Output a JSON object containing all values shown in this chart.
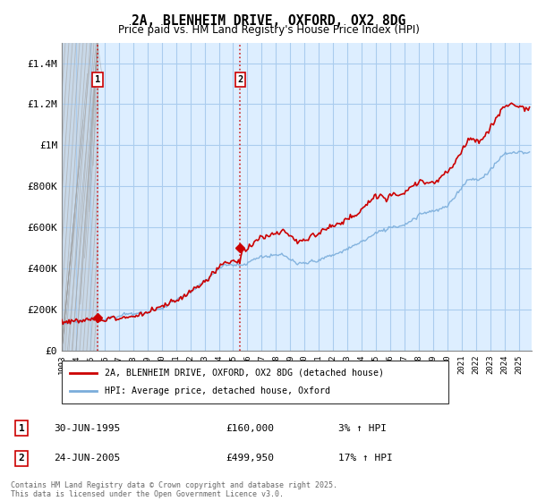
{
  "title": "2A, BLENHEIM DRIVE, OXFORD, OX2 8DG",
  "subtitle": "Price paid vs. HM Land Registry's House Price Index (HPI)",
  "legend_line1": "2A, BLENHEIM DRIVE, OXFORD, OX2 8DG (detached house)",
  "legend_line2": "HPI: Average price, detached house, Oxford",
  "purchase1_year": 1995.5,
  "purchase1_price": 160000,
  "purchase2_year": 2005.5,
  "purchase2_price": 499950,
  "purchase1_date": "30-JUN-1995",
  "purchase1_hpi_text": "3% ↑ HPI",
  "purchase2_date": "24-JUN-2005",
  "purchase2_hpi_text": "17% ↑ HPI",
  "footer": "Contains HM Land Registry data © Crown copyright and database right 2025.\nThis data is licensed under the Open Government Licence v3.0.",
  "property_color": "#cc0000",
  "hpi_color": "#7aaddb",
  "plot_bg_color": "#ddeeff",
  "hatch_color": "#bbbbbb",
  "grid_color": "#aaccee",
  "ylim": [
    0,
    1500000
  ],
  "xlim_start": 1993.0,
  "xlim_end": 2025.9,
  "ytick_vals": [
    0,
    200000,
    400000,
    600000,
    800000,
    1000000,
    1200000,
    1400000
  ],
  "ytick_labels": [
    "£0",
    "£200K",
    "£400K",
    "£600K",
    "£800K",
    "£1M",
    "£1.2M",
    "£1.4M"
  ]
}
